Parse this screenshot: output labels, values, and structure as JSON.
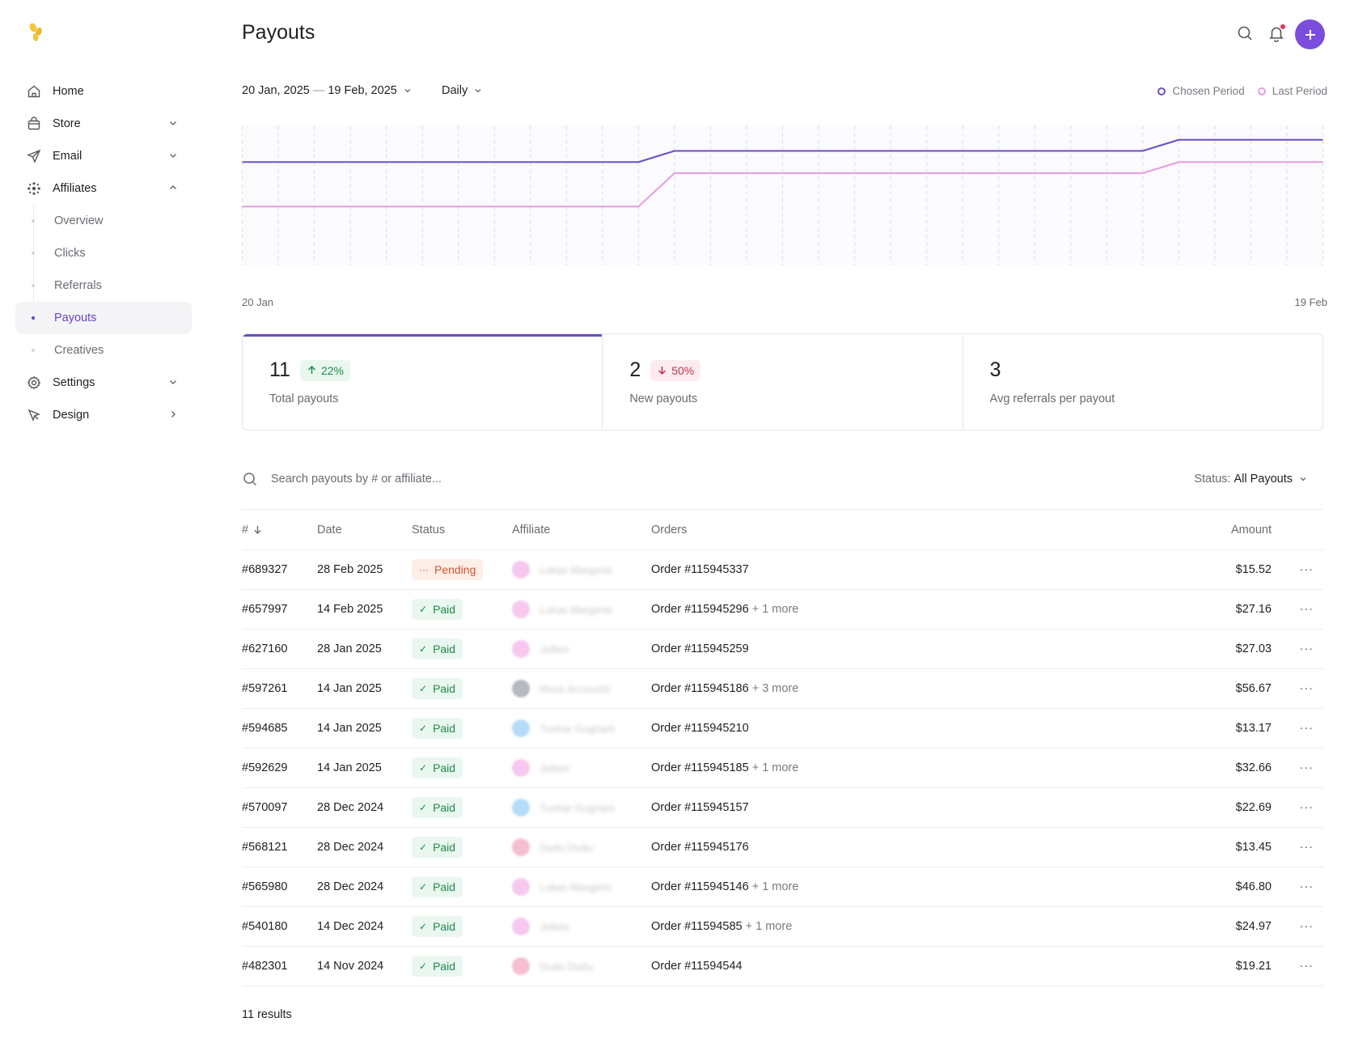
{
  "nav": {
    "items": [
      {
        "label": "Home"
      },
      {
        "label": "Store"
      },
      {
        "label": "Email"
      },
      {
        "label": "Affiliates"
      },
      {
        "label": "Settings"
      },
      {
        "label": "Design"
      }
    ],
    "affiliates_sub": [
      {
        "label": "Overview"
      },
      {
        "label": "Clicks"
      },
      {
        "label": "Referrals"
      },
      {
        "label": "Payouts"
      },
      {
        "label": "Creatives"
      }
    ]
  },
  "header": {
    "title": "Payouts"
  },
  "filters": {
    "date_start": "20 Jan, 2025",
    "date_sep": "—",
    "date_end": "19 Feb, 2025",
    "interval": "Daily"
  },
  "legend": {
    "chosen": "Chosen Period",
    "last": "Last Period",
    "chosen_color": "#6b4fc2",
    "last_color": "#e79be0"
  },
  "chart_data": {
    "type": "line",
    "x_start_label": "20 Jan",
    "x_end_label": "19 Feb",
    "x_count": 31,
    "ylim": [
      0,
      12
    ],
    "series": [
      {
        "name": "Chosen Period",
        "values": [
          9,
          9,
          9,
          9,
          9,
          9,
          9,
          9,
          9,
          9,
          9,
          9,
          10,
          10,
          10,
          10,
          10,
          10,
          10,
          10,
          10,
          10,
          10,
          10,
          10,
          10,
          11,
          11,
          11,
          11,
          11
        ]
      },
      {
        "name": "Last Period",
        "values": [
          5,
          5,
          5,
          5,
          5,
          5,
          5,
          5,
          5,
          5,
          5,
          5,
          8,
          8,
          8,
          8,
          8,
          8,
          8,
          8,
          8,
          8,
          8,
          8,
          8,
          8,
          9,
          9,
          9,
          9,
          9
        ]
      }
    ]
  },
  "stats": [
    {
      "value": "11",
      "change": "22%",
      "direction": "up",
      "caption": "Total payouts"
    },
    {
      "value": "2",
      "change": "50%",
      "direction": "down",
      "caption": "New payouts"
    },
    {
      "value": "3",
      "caption": "Avg referrals per payout"
    }
  ],
  "search": {
    "placeholder": "Search payouts by # or affiliate..."
  },
  "status_filter": {
    "key": "Status:",
    "value": "All Payouts"
  },
  "table": {
    "headers": {
      "id": "#",
      "date": "Date",
      "status": "Status",
      "affiliate": "Affiliate",
      "orders": "Orders",
      "amount": "Amount"
    },
    "rows": [
      {
        "id": "#689327",
        "date": "28 Feb 2025",
        "status": "Pending",
        "affiliate": "Lukas Margerie",
        "avatar_color": "#f6c8ef",
        "order": "Order #115945337",
        "more": "",
        "amount": "$15.52"
      },
      {
        "id": "#657997",
        "date": "14 Feb 2025",
        "status": "Paid",
        "affiliate": "Lukas Margerie",
        "avatar_color": "#f6c8ef",
        "order": "Order #115945296",
        "more": "+ 1 more",
        "amount": "$27.16"
      },
      {
        "id": "#627160",
        "date": "28 Jan 2025",
        "status": "Paid",
        "affiliate": "Jollein",
        "avatar_color": "#f6c8ef",
        "order": "Order #115945259",
        "more": "",
        "amount": "$27.03"
      },
      {
        "id": "#597261",
        "date": "14 Jan 2025",
        "status": "Paid",
        "affiliate": "Mock Accounts",
        "avatar_color": "#b4b9c2",
        "order": "Order #115945186",
        "more": "+ 3 more",
        "amount": "$56.67"
      },
      {
        "id": "#594685",
        "date": "14 Jan 2025",
        "status": "Paid",
        "affiliate": "Tushar Gugnani",
        "avatar_color": "#b5dcf7",
        "order": "Order #115945210",
        "more": "",
        "amount": "$13.17"
      },
      {
        "id": "#592629",
        "date": "14 Jan 2025",
        "status": "Paid",
        "affiliate": "Jollein",
        "avatar_color": "#f6c8ef",
        "order": "Order #115945185",
        "more": "+ 1 more",
        "amount": "$32.66"
      },
      {
        "id": "#570097",
        "date": "28 Dec 2024",
        "status": "Paid",
        "affiliate": "Tushar Gugnani",
        "avatar_color": "#b5dcf7",
        "order": "Order #115945157",
        "more": "",
        "amount": "$22.69"
      },
      {
        "id": "#568121",
        "date": "28 Dec 2024",
        "status": "Paid",
        "affiliate": "Dudu Dudu",
        "avatar_color": "#f5bfcf",
        "order": "Order #115945176",
        "more": "",
        "amount": "$13.45"
      },
      {
        "id": "#565980",
        "date": "28 Dec 2024",
        "status": "Paid",
        "affiliate": "Lukas Margerie",
        "avatar_color": "#f6c8ef",
        "order": "Order #115945146",
        "more": "+ 1 more",
        "amount": "$46.80"
      },
      {
        "id": "#540180",
        "date": "14 Dec 2024",
        "status": "Paid",
        "affiliate": "Jollein",
        "avatar_color": "#f6c8ef",
        "order": "Order #11594585",
        "more": "+ 1 more",
        "amount": "$24.97"
      },
      {
        "id": "#482301",
        "date": "14 Nov 2024",
        "status": "Paid",
        "affiliate": "Dudu Dudu",
        "avatar_color": "#f5bfcf",
        "order": "Order #11594544",
        "more": "",
        "amount": "$19.21"
      }
    ]
  },
  "results": "11 results",
  "colors": {
    "accent": "#6b4fc2",
    "add_button": "#7c4ddd",
    "logo": "#f2c438"
  }
}
